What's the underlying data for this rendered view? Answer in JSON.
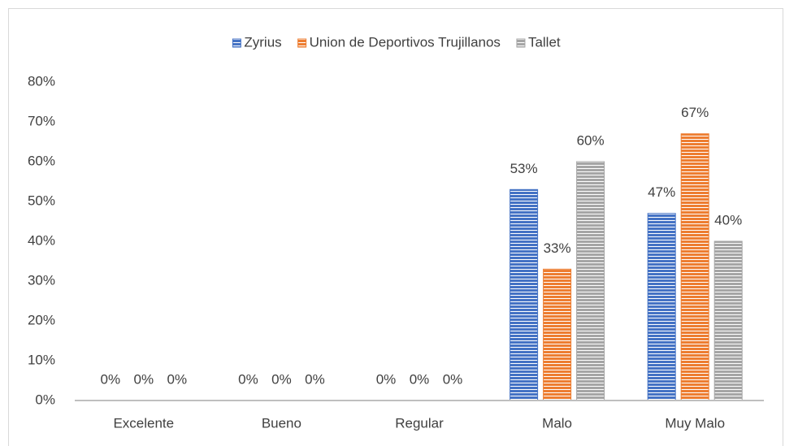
{
  "chart_data": {
    "type": "bar",
    "categories": [
      "Excelente",
      "Bueno",
      "Regular",
      "Malo",
      "Muy Malo"
    ],
    "series": [
      {
        "name": "Zyrius",
        "color": "#4472c4",
        "values": [
          0,
          0,
          0,
          53,
          47
        ],
        "value_labels": [
          "0%",
          "0%",
          "0%",
          "53%",
          "47%"
        ]
      },
      {
        "name": "Union de Deportivos Trujillanos",
        "color": "#ed7d31",
        "values": [
          0,
          0,
          0,
          33,
          67
        ],
        "value_labels": [
          "0%",
          "0%",
          "0%",
          "33%",
          "67%"
        ]
      },
      {
        "name": "Tallet",
        "color": "#a5a5a5",
        "values": [
          0,
          0,
          0,
          60,
          40
        ],
        "value_labels": [
          "0%",
          "0%",
          "0%",
          "60%",
          "40%"
        ]
      }
    ],
    "ylim": [
      0,
      80
    ],
    "yticks": [
      {
        "value": 0,
        "label": "0%"
      },
      {
        "value": 10,
        "label": "10%"
      },
      {
        "value": 20,
        "label": "20%"
      },
      {
        "value": 30,
        "label": "30%"
      },
      {
        "value": 40,
        "label": "40%"
      },
      {
        "value": 50,
        "label": "50%"
      },
      {
        "value": 60,
        "label": "60%"
      },
      {
        "value": 70,
        "label": "70%"
      },
      {
        "value": 80,
        "label": "80%"
      }
    ],
    "grid": false,
    "legend": "top"
  }
}
